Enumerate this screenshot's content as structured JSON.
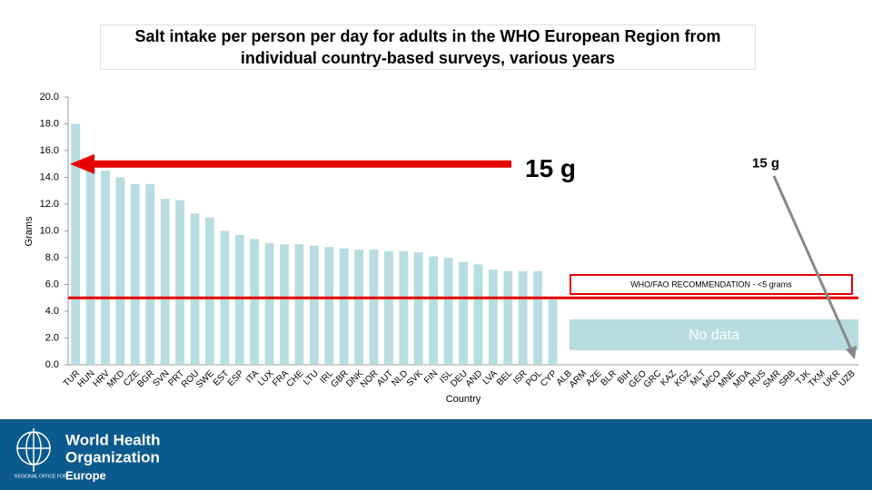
{
  "chart_data": {
    "type": "bar",
    "title": "Salt intake per person per day for adults in the WHO European Region from individual country-based surveys, various years",
    "y_label": "Grams",
    "x_label": "Country",
    "categories": [
      "TUR",
      "HUN",
      "HRV",
      "MKD",
      "CZE",
      "BGR",
      "SVN",
      "PRT",
      "ROU",
      "SWE",
      "EST",
      "ESP",
      "ITA",
      "LUX",
      "FRA",
      "CHE",
      "LTU",
      "IRL",
      "GBR",
      "DNK",
      "NOR",
      "AUT",
      "NLD",
      "SVK",
      "FIN",
      "ISL",
      "DEU",
      "AND",
      "LVA",
      "BEL",
      "ISR",
      "POL",
      "CYP",
      "ALB",
      "ARM",
      "AZE",
      "BLR",
      "BIH",
      "GEO",
      "GRC",
      "KAZ",
      "KGZ",
      "MLT",
      "MCO",
      "MNE",
      "MDA",
      "RUS",
      "SMR",
      "SRB",
      "TJK",
      "TKM",
      "UKR",
      "UZB"
    ],
    "values": [
      18.0,
      14.8,
      14.5,
      14.0,
      13.5,
      13.5,
      12.4,
      12.3,
      11.3,
      11.0,
      10.0,
      9.7,
      9.4,
      9.1,
      9.0,
      9.0,
      8.9,
      8.8,
      8.7,
      8.6,
      8.6,
      8.5,
      8.5,
      8.4,
      8.1,
      8.0,
      7.7,
      7.5,
      7.1,
      7.0,
      7.0,
      7.0,
      4.9,
      null,
      null,
      null,
      null,
      null,
      null,
      null,
      null,
      null,
      null,
      null,
      null,
      null,
      null,
      null,
      null,
      null,
      null,
      null,
      null
    ],
    "color": "#b7dde0",
    "ylim": [
      0,
      20
    ],
    "yticks": [
      {
        "value": 0,
        "label": "0.0"
      },
      {
        "value": 2,
        "label": "2.0"
      },
      {
        "value": 4,
        "label": "4.0"
      },
      {
        "value": 6,
        "label": "6.0"
      },
      {
        "value": 8,
        "label": "8.0"
      },
      {
        "value": 10,
        "label": "10.0"
      },
      {
        "value": 12,
        "label": "12.0"
      },
      {
        "value": 14,
        "label": "14.0"
      },
      {
        "value": 16,
        "label": "16.0"
      },
      {
        "value": 18,
        "label": "18.0"
      },
      {
        "value": 20,
        "label": "20.0"
      }
    ],
    "grid": false,
    "recommendation": {
      "value": 5,
      "label": "WHO/FAO RECOMMENDATION - <5 grams",
      "color": "#e60000"
    },
    "target": {
      "value": 15,
      "label": "15 g",
      "side_label": "15 g",
      "color": "#e60000"
    },
    "no_data_label": "No data"
  },
  "footer": {
    "org_line1": "World Health",
    "org_line2": "Organization",
    "office": "REGIONAL OFFICE FOR",
    "region": "Europe"
  }
}
